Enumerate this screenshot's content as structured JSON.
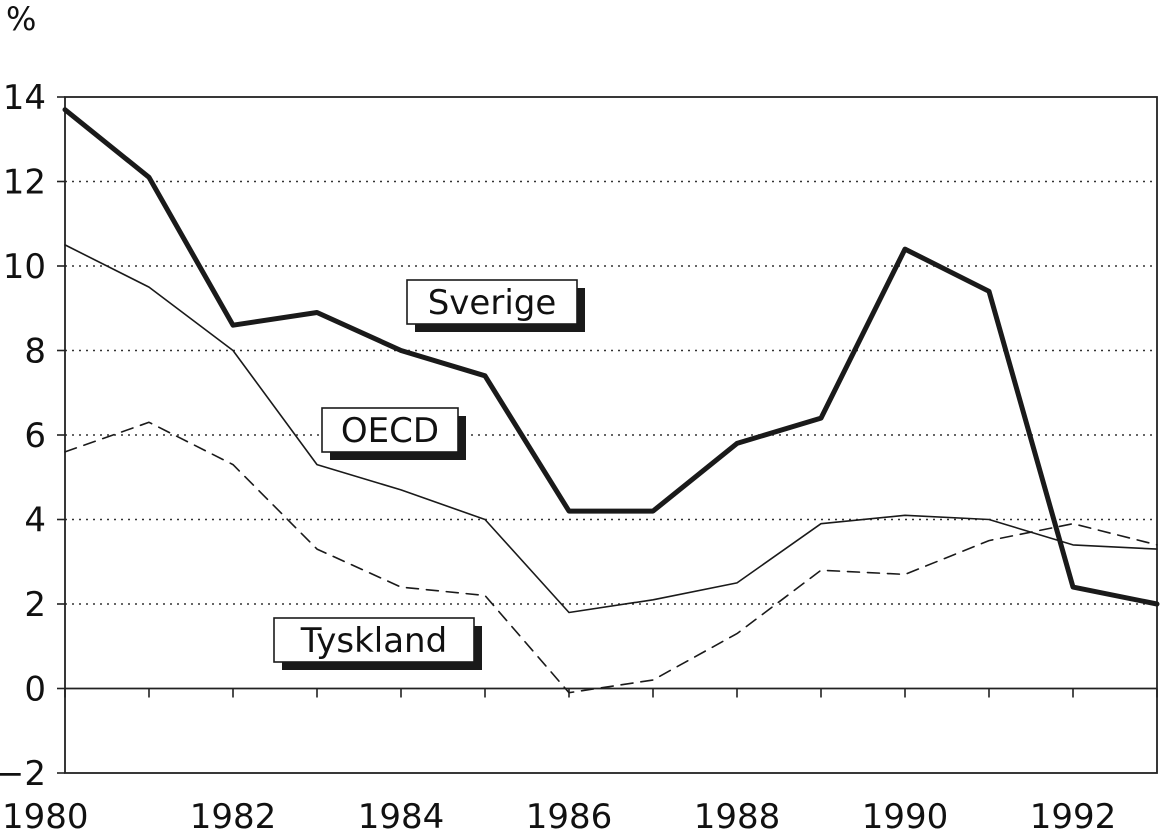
{
  "chart_data": {
    "type": "line",
    "title": "",
    "xlabel": "",
    "ylabel": "%",
    "x": [
      1980,
      1981,
      1982,
      1983,
      1984,
      1985,
      1986,
      1987,
      1988,
      1989,
      1990,
      1991,
      1992,
      1993
    ],
    "xlim": [
      1980,
      1993
    ],
    "ylim": [
      -2,
      14
    ],
    "x_ticks": [
      1980,
      1982,
      1984,
      1986,
      1988,
      1990,
      1992
    ],
    "x_tick_labels": [
      "1980",
      "1982",
      "1984",
      "1986",
      "1988",
      "1990",
      "1992"
    ],
    "y_ticks": [
      -2,
      0,
      2,
      4,
      6,
      8,
      10,
      12,
      14
    ],
    "y_tick_labels": [
      "−2",
      "0",
      "2",
      "4",
      "6",
      "8",
      "10",
      "12",
      "14"
    ],
    "grid": "horizontal dotted",
    "series": [
      {
        "name": "Sverige",
        "style": "thick-solid",
        "color": "#1a1a1a",
        "values": [
          13.7,
          12.1,
          8.6,
          8.9,
          8.0,
          7.4,
          4.2,
          4.2,
          5.8,
          6.4,
          10.4,
          9.4,
          2.4,
          2.0
        ]
      },
      {
        "name": "OECD",
        "style": "thin-solid",
        "color": "#1a1a1a",
        "values": [
          10.5,
          9.5,
          8.0,
          5.3,
          4.7,
          4.0,
          1.8,
          2.1,
          2.5,
          3.9,
          4.1,
          4.0,
          3.4,
          3.3
        ]
      },
      {
        "name": "Tyskland",
        "style": "dashed",
        "color": "#1a1a1a",
        "values": [
          5.6,
          6.3,
          5.3,
          3.3,
          2.4,
          2.2,
          -0.1,
          0.2,
          1.3,
          2.8,
          2.7,
          3.5,
          3.9,
          3.4
        ]
      }
    ],
    "legend": [
      {
        "label": "Sverige",
        "placement": "upper-center"
      },
      {
        "label": "OECD",
        "placement": "middle-left"
      },
      {
        "label": "Tyskland",
        "placement": "lower-left"
      }
    ]
  }
}
